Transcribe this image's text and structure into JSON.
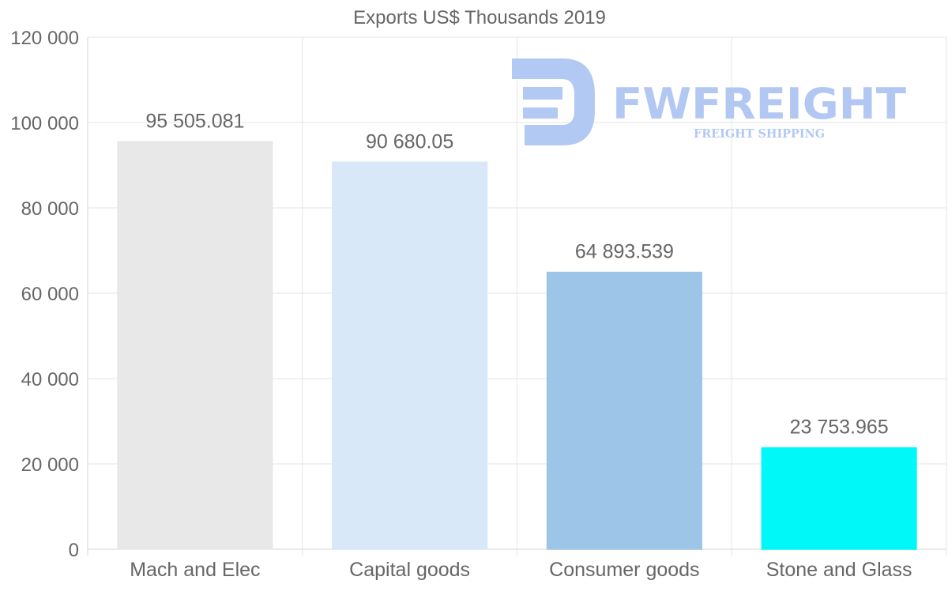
{
  "chart_data": {
    "type": "bar",
    "title": "Exports US$ Thousands 2019",
    "categories": [
      "Mach and Elec",
      "Capital goods",
      "Consumer goods",
      "Stone and Glass"
    ],
    "values": [
      95505.081,
      90680.05,
      64893.539,
      23753.965
    ],
    "data_labels": [
      "95 505.081",
      "90 680.05",
      "64 893.539",
      "23 753.965"
    ],
    "colors": [
      "#e8e8e8",
      "#d8e8f8",
      "#9dc5e8",
      "#00f8f8"
    ],
    "ylim": [
      0,
      120000
    ],
    "yticks": [
      0,
      20000,
      40000,
      60000,
      80000,
      100000,
      120000
    ],
    "ytick_labels": [
      "0",
      "20 000",
      "40 000",
      "60 000",
      "80 000",
      "100 000",
      "120 000"
    ],
    "xlabel": "",
    "ylabel": "",
    "grid": true,
    "legend": "none"
  },
  "watermark": {
    "brand": "FWFREIGHT",
    "tagline": "FREIGHT SHIPPING",
    "color": "#aec6f2"
  }
}
